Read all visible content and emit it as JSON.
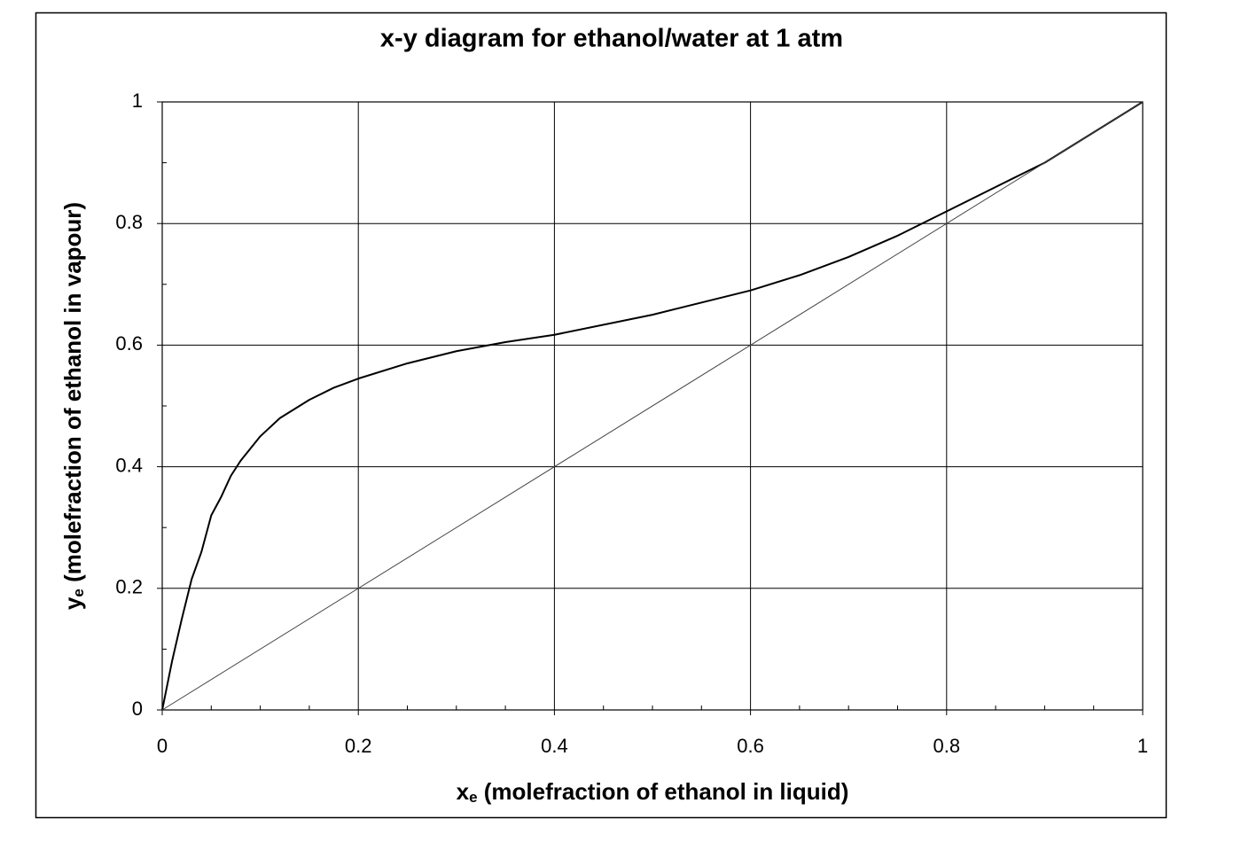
{
  "chart_data": {
    "type": "line",
    "title": "x-y diagram for ethanol/water at 1 atm",
    "x_label": {
      "symbol": "x",
      "subscript": "e",
      "text": " (molefraction of ethanol in liquid)"
    },
    "y_label": {
      "symbol": "y",
      "subscript": "e",
      "text": " (molefraction of ethanol in vapour)"
    },
    "xlim": [
      0,
      1
    ],
    "ylim": [
      0,
      1
    ],
    "xticks": [
      0,
      0.2,
      0.4,
      0.6,
      0.8,
      1
    ],
    "yticks": [
      0,
      0.2,
      0.4,
      0.6,
      0.8,
      1
    ],
    "x_minor_ticks": [
      0.05,
      0.1,
      0.15,
      0.25,
      0.3,
      0.35,
      0.45,
      0.5,
      0.55,
      0.65,
      0.7,
      0.75,
      0.85,
      0.9,
      0.95
    ],
    "y_minor_ticks": [
      0.1,
      0.3,
      0.5,
      0.7,
      0.9
    ],
    "grid": true,
    "series": [
      {
        "color": "#000000",
        "width": 2,
        "x": [
          0,
          0.01,
          0.02,
          0.03,
          0.04,
          0.05,
          0.06,
          0.07,
          0.08,
          0.1,
          0.12,
          0.15,
          0.175,
          0.2,
          0.25,
          0.3,
          0.35,
          0.4,
          0.5,
          0.6,
          0.65,
          0.7,
          0.75,
          0.8,
          0.85,
          0.9,
          1
        ],
        "values": [
          0,
          0.08,
          0.15,
          0.215,
          0.26,
          0.32,
          0.35,
          0.385,
          0.41,
          0.45,
          0.48,
          0.51,
          0.53,
          0.545,
          0.57,
          0.59,
          0.605,
          0.617,
          0.65,
          0.69,
          0.715,
          0.745,
          0.78,
          0.82,
          0.86,
          0.9,
          1
        ]
      },
      {
        "color": "#444444",
        "width": 1,
        "x": [
          0,
          1
        ],
        "values": [
          0,
          1
        ]
      }
    ]
  }
}
